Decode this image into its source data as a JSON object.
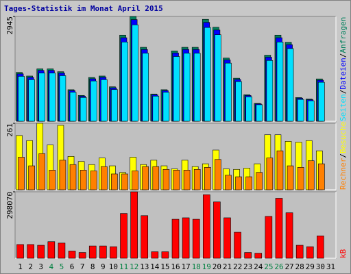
{
  "chart_data": [
    {
      "type": "bar",
      "title": "Tages-Statistik im Monat April 2015",
      "ylim": [
        0,
        2945
      ],
      "yticks": [
        2945
      ],
      "legend_separator": "/",
      "series": [
        {
          "name": "Anfragen",
          "color": "#00805c",
          "values": [
            1372,
            1271,
            1472,
            1472,
            1392,
            887,
            726,
            1230,
            1271,
            968,
            2420,
            2945,
            2078,
            766,
            887,
            1977,
            2078,
            2078,
            2864,
            2642,
            1775,
            1210,
            746,
            504,
            1856,
            2420,
            2219,
            666,
            625,
            1190,
            null
          ]
        },
        {
          "name": "Dateien",
          "color": "#0000ff",
          "values": [
            1331,
            1233,
            1428,
            1428,
            1350,
            860,
            704,
            1193,
            1233,
            939,
            2347,
            2857,
            2016,
            743,
            860,
            1918,
            2016,
            2016,
            2778,
            2563,
            1722,
            1174,
            724,
            489,
            1800,
            2347,
            2152,
            646,
            606,
            1154,
            null
          ]
        },
        {
          "name": "Seiten",
          "color": "#00e0ff",
          "values": [
            1262,
            1169,
            1354,
            1354,
            1281,
            816,
            668,
            1132,
            1169,
            891,
            2226,
            2709,
            1912,
            705,
            816,
            1819,
            1912,
            1912,
            2635,
            2431,
            1633,
            1113,
            686,
            464,
            1708,
            2226,
            2041,
            613,
            575,
            1095,
            null
          ]
        }
      ]
    },
    {
      "type": "bar",
      "ylim": [
        0,
        261
      ],
      "yticks": [
        261
      ],
      "legend_separator": "/",
      "series": [
        {
          "name": "Besuche",
          "color": "#ffff00",
          "values": [
            213,
            193,
            261,
            176,
            253,
            131,
            111,
            99,
            125,
            94,
            68,
            128,
            99,
            116,
            94,
            82,
            116,
            91,
            102,
            156,
            82,
            80,
            85,
            102,
            216,
            216,
            190,
            187,
            193,
            153,
            null
          ]
        },
        {
          "name": "Rechner",
          "color": "#ff8000",
          "values": [
            128,
            94,
            142,
            77,
            116,
            99,
            77,
            74,
            91,
            62,
            62,
            74,
            91,
            91,
            80,
            77,
            77,
            80,
            88,
            119,
            57,
            51,
            51,
            68,
            125,
            153,
            94,
            88,
            114,
            102,
            null
          ]
        }
      ]
    },
    {
      "type": "bar",
      "ylim": [
        0,
        298070
      ],
      "yticks": [
        298070
      ],
      "categories": [
        "1",
        "2",
        "3",
        "4",
        "5",
        "6",
        "7",
        "8",
        "9",
        "10",
        "11",
        "12",
        "13",
        "14",
        "15",
        "16",
        "17",
        "18",
        "19",
        "20",
        "21",
        "22",
        "23",
        "24",
        "25",
        "26",
        "27",
        "28",
        "29",
        "30",
        "31"
      ],
      "category_colors": [
        "#000000",
        "#000000",
        "#000000",
        "#008040",
        "#008040",
        "#000000",
        "#000000",
        "#000000",
        "#000000",
        "#000000",
        "#008040",
        "#008040",
        "#000000",
        "#000000",
        "#000000",
        "#000000",
        "#000000",
        "#008040",
        "#008040",
        "#000000",
        "#000000",
        "#000000",
        "#000000",
        "#000000",
        "#008040",
        "#008040",
        "#000000",
        "#000000",
        "#000000",
        "#000000",
        "#000000"
      ],
      "series": [
        {
          "name": "kB",
          "color": "#ff0000",
          "values": [
            61560,
            61560,
            58320,
            74520,
            68040,
            32400,
            25920,
            55080,
            55080,
            51840,
            200880,
            298070,
            191160,
            29160,
            29160,
            174960,
            181440,
            174960,
            285120,
            252720,
            181440,
            116640,
            25920,
            22680,
            187920,
            268920,
            204120,
            58320,
            51840,
            100440,
            null
          ]
        }
      ]
    }
  ]
}
